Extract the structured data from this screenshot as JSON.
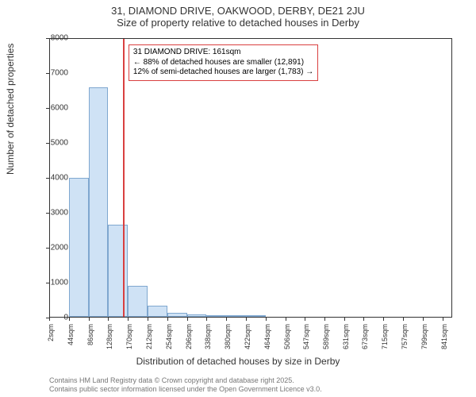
{
  "title_line1": "31, DIAMOND DRIVE, OAKWOOD, DERBY, DE21 2JU",
  "title_line2": "Size of property relative to detached houses in Derby",
  "ylabel": "Number of detached properties",
  "xlabel": "Distribution of detached houses by size in Derby",
  "footer_line1": "Contains HM Land Registry data © Crown copyright and database right 2025.",
  "footer_line2": "Contains public sector information licensed under the Open Government Licence v3.0.",
  "chart": {
    "type": "histogram",
    "ylim": [
      0,
      8000
    ],
    "ytick_step": 1000,
    "xlim": [
      2,
      862
    ],
    "xtick_start": 2,
    "xtick_step": 42,
    "xtick_unit": "sqm",
    "bar_fill": "#cfe2f5",
    "bar_stroke": "#7fa7cf",
    "bar_width_sqm": 42,
    "background_color": "#ffffff",
    "axis_color": "#333333",
    "bars": [
      {
        "x_start": 2,
        "count": 0
      },
      {
        "x_start": 44,
        "count": 4000
      },
      {
        "x_start": 86,
        "count": 6600
      },
      {
        "x_start": 128,
        "count": 2650
      },
      {
        "x_start": 170,
        "count": 900
      },
      {
        "x_start": 212,
        "count": 350
      },
      {
        "x_start": 254,
        "count": 140
      },
      {
        "x_start": 296,
        "count": 80
      },
      {
        "x_start": 338,
        "count": 40
      },
      {
        "x_start": 380,
        "count": 10
      },
      {
        "x_start": 422,
        "count": 10
      }
    ],
    "marker": {
      "value_sqm": 161,
      "color": "#d94040"
    },
    "annotation": {
      "border_color": "#d94040",
      "line1": "31 DIAMOND DRIVE: 161sqm",
      "line2": "← 88% of detached houses are smaller (12,891)",
      "line3": "12% of semi-detached houses are larger (1,783) →"
    }
  },
  "tick_fontsize": 10,
  "label_fontsize": 12,
  "title_fontsize": 13
}
